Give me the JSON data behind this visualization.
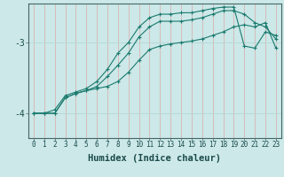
{
  "xlabel": "Humidex (Indice chaleur)",
  "bg_color": "#cce8e8",
  "line_color": "#1a7a6e",
  "xlim": [
    -0.5,
    23.5
  ],
  "ylim": [
    -4.35,
    -2.45
  ],
  "xticks": [
    0,
    1,
    2,
    3,
    4,
    5,
    6,
    7,
    8,
    9,
    10,
    11,
    12,
    13,
    14,
    15,
    16,
    17,
    18,
    19,
    20,
    21,
    22,
    23
  ],
  "yticks": [
    -4,
    -3
  ],
  "series1_x": [
    0,
    1,
    2,
    3,
    4,
    5,
    6,
    7,
    8,
    9,
    10,
    11,
    12,
    13,
    14,
    15,
    16,
    17,
    18,
    19,
    20,
    21,
    22,
    23
  ],
  "series1_y": [
    -4.0,
    -4.0,
    -4.0,
    -3.78,
    -3.72,
    -3.68,
    -3.65,
    -3.62,
    -3.55,
    -3.42,
    -3.25,
    -3.1,
    -3.05,
    -3.02,
    -3.0,
    -2.98,
    -2.95,
    -2.9,
    -2.85,
    -2.78,
    -2.75,
    -2.78,
    -2.72,
    -3.08
  ],
  "series2_x": [
    0,
    1,
    2,
    3,
    4,
    5,
    6,
    7,
    8,
    9,
    10,
    11,
    12,
    13,
    14,
    15,
    16,
    17,
    18,
    19,
    20,
    21,
    22,
    23
  ],
  "series2_y": [
    -4.0,
    -4.0,
    -4.0,
    -3.78,
    -3.72,
    -3.68,
    -3.62,
    -3.48,
    -3.32,
    -3.15,
    -2.92,
    -2.78,
    -2.7,
    -2.7,
    -2.7,
    -2.68,
    -2.65,
    -2.6,
    -2.55,
    -2.55,
    -2.6,
    -2.72,
    -2.78,
    -2.95
  ],
  "series3_x": [
    0,
    1,
    2,
    3,
    4,
    5,
    6,
    7,
    8,
    9,
    10,
    11,
    12,
    13,
    14,
    15,
    16,
    17,
    18,
    19,
    20,
    21,
    22,
    23
  ],
  "series3_y": [
    -4.0,
    -4.0,
    -3.95,
    -3.75,
    -3.7,
    -3.65,
    -3.55,
    -3.38,
    -3.15,
    -3.0,
    -2.78,
    -2.65,
    -2.6,
    -2.6,
    -2.58,
    -2.58,
    -2.55,
    -2.52,
    -2.5,
    -2.5,
    -3.05,
    -3.08,
    -2.85,
    -2.9
  ],
  "vgrid_color": "#ddaaaa",
  "hgrid_color": "#b8d8d8",
  "tick_fontsize": 5.5,
  "xlabel_fontsize": 7.5
}
